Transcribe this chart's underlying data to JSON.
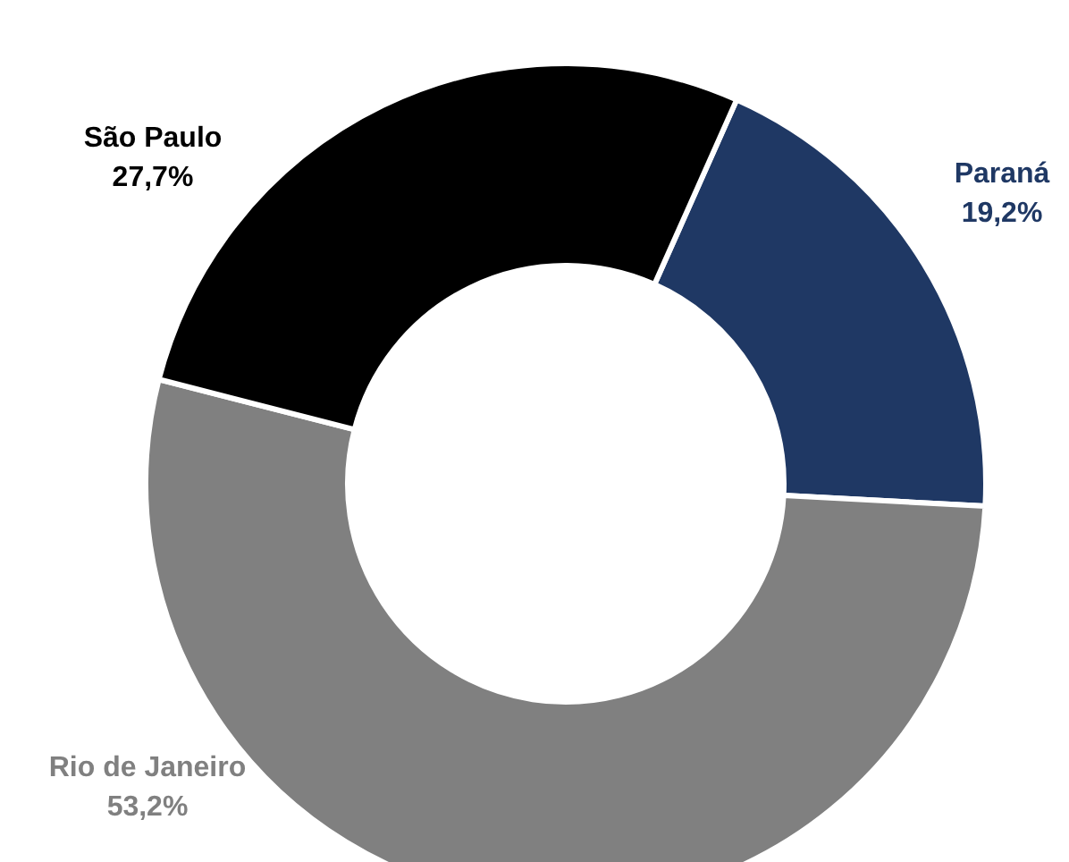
{
  "chart_data": {
    "type": "donut",
    "categories": [
      "Paraná",
      "Rio de Janeiro",
      "São Paulo"
    ],
    "values": [
      19.2,
      53.2,
      27.7
    ],
    "value_labels": [
      "19,2%",
      "53,2%",
      "27,7%"
    ],
    "colors": [
      "#1f3864",
      "#808080",
      "#000000"
    ]
  }
}
